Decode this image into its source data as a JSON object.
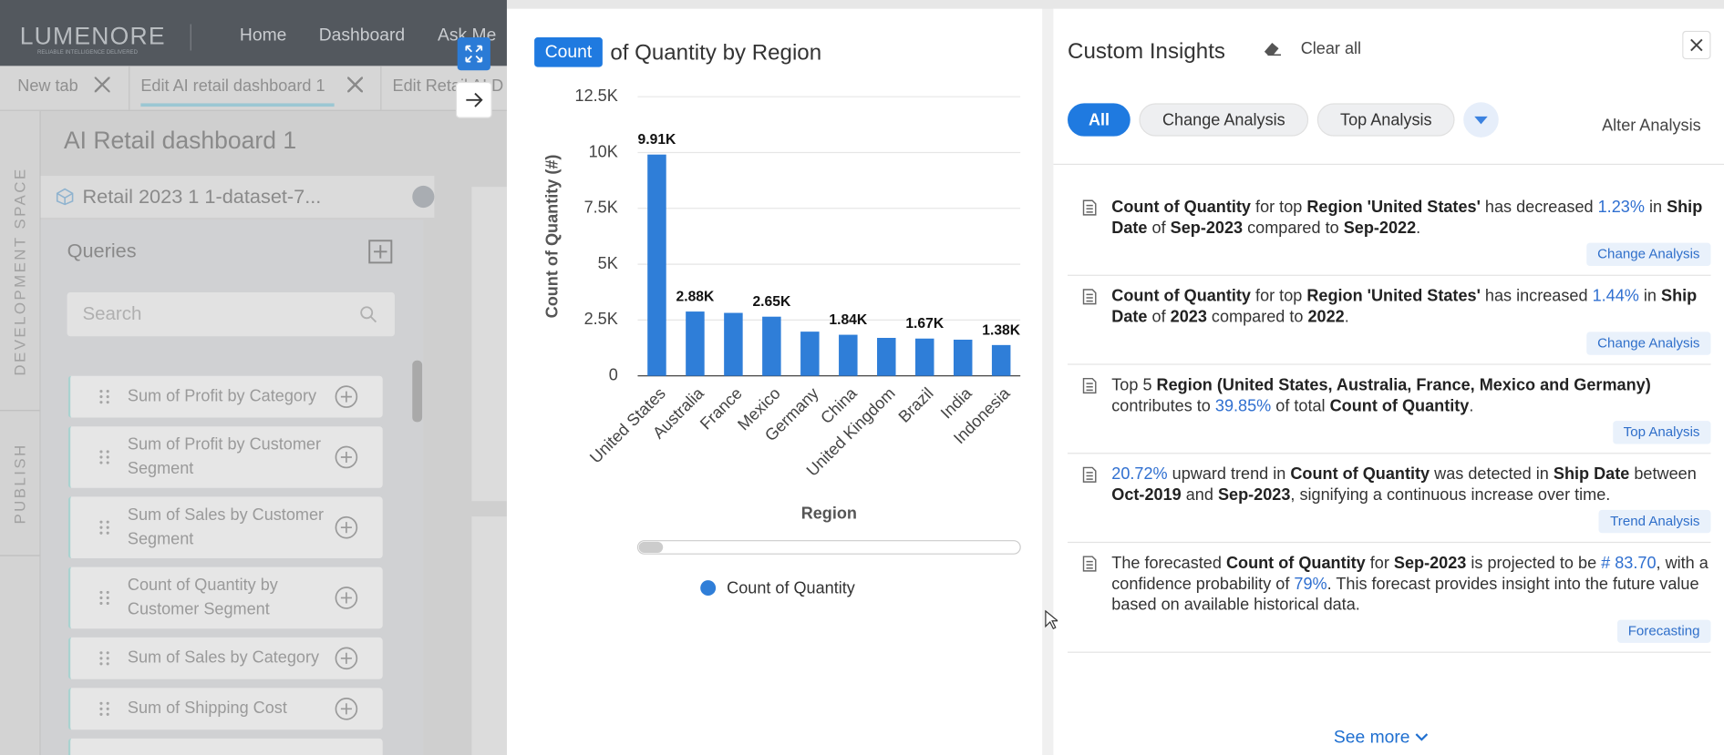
{
  "app": {
    "brand": "LUMENORE",
    "brand_tagline": "RELIABLE INTELLIGENCE DELIVERED",
    "nav": [
      "Home",
      "Dashboard",
      "Ask Me"
    ],
    "tabs": [
      "New tab",
      "Edit AI retail dashboard 1",
      "Edit Retail AI D"
    ],
    "side_labels": [
      "DEVELOPMENT SPACE",
      "PUBLISH"
    ],
    "dashboard_title": "AI Retail dashboard 1",
    "dataset": "Retail 2023 1 1-dataset-7...",
    "queries_title": "Queries",
    "search_placeholder": "Search",
    "queries": [
      "Sum of Profit by Category",
      "Sum of Profit by Customer Segment",
      "Sum of Sales by Customer Segment",
      "Count of Quantity by Customer Segment",
      "Sum of Sales by Category",
      "Sum of Shipping Cost"
    ]
  },
  "chart_data": {
    "type": "bar",
    "title_badge": "Count",
    "title": "of Quantity by Region",
    "x_label": "Region",
    "y_label": "Count of Quantity (#)",
    "categories": [
      "United States",
      "Australia",
      "France",
      "Mexico",
      "Germany",
      "China",
      "United Kingdom",
      "Brazil",
      "India",
      "Indonesia"
    ],
    "series": [
      {
        "name": "Count of Quantity",
        "color": "#2f7ed8",
        "values": [
          9910,
          2880,
          2820,
          2650,
          1980,
          1840,
          1700,
          1670,
          1620,
          1380
        ],
        "value_labels": [
          "9.91K",
          "2.88K",
          null,
          "2.65K",
          null,
          "1.84K",
          null,
          "1.67K",
          null,
          "1.38K"
        ]
      }
    ],
    "ylim": [
      0,
      12500
    ],
    "yticks": [
      0,
      {
        "value": 2500,
        "label": "2.5K"
      },
      {
        "value": 5000,
        "label": "5K"
      },
      {
        "value": 7500,
        "label": "7.5K"
      },
      {
        "value": 10000,
        "label": "10K"
      },
      {
        "value": 12500,
        "label": "12.5K"
      }
    ],
    "grid": true
  },
  "insights": {
    "title": "Custom Insights",
    "clear": "Clear all",
    "filters": [
      "All",
      "Change Analysis",
      "Top Analysis"
    ],
    "alter": "Alter Analysis",
    "items": [
      {
        "parts": [
          {
            "text": "Count of Quantity",
            "style": "bold"
          },
          {
            "text": " for top "
          },
          {
            "text": "Region 'United States'",
            "style": "bold"
          },
          {
            "text": " has decreased "
          },
          {
            "text": "1.23%",
            "style": "accent"
          },
          {
            "text": " in "
          },
          {
            "text": "Ship Date",
            "style": "bold"
          },
          {
            "text": " of "
          },
          {
            "text": "Sep-2023",
            "style": "bold"
          },
          {
            "text": " compared to "
          },
          {
            "text": "Sep-2022",
            "style": "bold"
          },
          {
            "text": "."
          }
        ],
        "tag": "Change Analysis"
      },
      {
        "parts": [
          {
            "text": "Count of Quantity",
            "style": "bold"
          },
          {
            "text": " for top "
          },
          {
            "text": "Region 'United States'",
            "style": "bold"
          },
          {
            "text": " has increased "
          },
          {
            "text": "1.44%",
            "style": "accent"
          },
          {
            "text": " in "
          },
          {
            "text": "Ship Date",
            "style": "bold"
          },
          {
            "text": " of "
          },
          {
            "text": "2023",
            "style": "bold"
          },
          {
            "text": " compared to "
          },
          {
            "text": "2022",
            "style": "bold"
          },
          {
            "text": "."
          }
        ],
        "tag": "Change Analysis"
      },
      {
        "parts": [
          {
            "text": "Top 5 "
          },
          {
            "text": "Region (United States, Australia, France, Mexico and Germany)",
            "style": "bold"
          },
          {
            "text": " contributes to "
          },
          {
            "text": "39.85%",
            "style": "accent"
          },
          {
            "text": " of total "
          },
          {
            "text": "Count of Quantity",
            "style": "bold"
          },
          {
            "text": "."
          }
        ],
        "tag": "Top Analysis"
      },
      {
        "parts": [
          {
            "text": "20.72%",
            "style": "accent"
          },
          {
            "text": " upward trend in "
          },
          {
            "text": "Count of Quantity",
            "style": "bold"
          },
          {
            "text": " was detected in "
          },
          {
            "text": "Ship Date",
            "style": "bold"
          },
          {
            "text": " between "
          },
          {
            "text": "Oct-2019",
            "style": "bold"
          },
          {
            "text": " and "
          },
          {
            "text": "Sep-2023",
            "style": "bold"
          },
          {
            "text": ", signifying a continuous increase over time."
          }
        ],
        "tag": "Trend Analysis"
      },
      {
        "parts": [
          {
            "text": "The forecasted "
          },
          {
            "text": "Count of Quantity",
            "style": "bold"
          },
          {
            "text": " for "
          },
          {
            "text": "Sep-2023",
            "style": "bold"
          },
          {
            "text": " is projected to be "
          },
          {
            "text": "# 83.70",
            "style": "accent"
          },
          {
            "text": ", with a confidence probability of "
          },
          {
            "text": "79%",
            "style": "accent"
          },
          {
            "text": ". This forecast provides insight into the future value based on available historical data."
          }
        ],
        "tag": "Forecasting"
      }
    ],
    "see_more": "See more"
  }
}
